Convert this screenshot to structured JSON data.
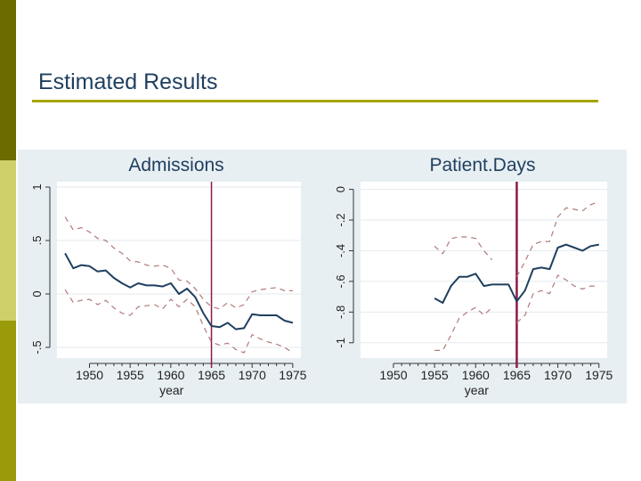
{
  "slide": {
    "title": "Estimated Results"
  },
  "colors": {
    "line": "#1f3f5f",
    "ci": "#b07a7a",
    "vline": "#8b1a4a",
    "panel_bg": "#e8eff3"
  },
  "chart_data": [
    {
      "type": "line",
      "title": "Admissions",
      "xlabel": "year",
      "ylabel": "",
      "xlim": [
        1946,
        1976
      ],
      "ylim": [
        -0.6,
        1.05
      ],
      "xticks": [
        1950,
        1955,
        1960,
        1965,
        1970,
        1975
      ],
      "yticks": [
        -0.5,
        0,
        0.5,
        1
      ],
      "ytick_labels": [
        "-.5",
        "0",
        ".5",
        "1"
      ],
      "vline": 1965,
      "x": [
        1947,
        1948,
        1949,
        1950,
        1951,
        1952,
        1953,
        1954,
        1955,
        1956,
        1957,
        1958,
        1959,
        1960,
        1961,
        1962,
        1963,
        1964,
        1965,
        1966,
        1967,
        1968,
        1969,
        1970,
        1971,
        1972,
        1973,
        1974,
        1975
      ],
      "series": [
        {
          "name": "estimate",
          "style": "solid",
          "values": [
            0.38,
            0.24,
            0.27,
            0.26,
            0.21,
            0.22,
            0.15,
            0.1,
            0.06,
            0.1,
            0.08,
            0.08,
            0.07,
            0.1,
            0.0,
            0.05,
            -0.03,
            -0.18,
            -0.3,
            -0.31,
            -0.27,
            -0.33,
            -0.32,
            -0.19,
            -0.2,
            -0.2,
            -0.2,
            -0.25,
            -0.27
          ]
        },
        {
          "name": "upper CI",
          "style": "dashed",
          "values": [
            0.72,
            0.6,
            0.62,
            0.58,
            0.52,
            0.5,
            0.43,
            0.38,
            0.31,
            0.3,
            0.27,
            0.26,
            0.27,
            0.24,
            0.13,
            0.12,
            0.05,
            -0.05,
            -0.12,
            -0.14,
            -0.08,
            -0.13,
            -0.1,
            0.02,
            0.04,
            0.05,
            0.06,
            0.03,
            0.03
          ]
        },
        {
          "name": "lower CI",
          "style": "dashed",
          "values": [
            0.04,
            -0.08,
            -0.06,
            -0.05,
            -0.1,
            -0.06,
            -0.13,
            -0.18,
            -0.2,
            -0.12,
            -0.11,
            -0.1,
            -0.14,
            -0.05,
            -0.12,
            -0.05,
            -0.12,
            -0.3,
            -0.45,
            -0.48,
            -0.46,
            -0.52,
            -0.55,
            -0.38,
            -0.42,
            -0.45,
            -0.47,
            -0.5,
            -0.55
          ]
        }
      ]
    },
    {
      "type": "line",
      "title": "Patient.Days",
      "xlabel": "year",
      "ylabel": "",
      "xlim": [
        1946,
        1976
      ],
      "ylim": [
        -1.1,
        0.05
      ],
      "xticks": [
        1950,
        1955,
        1960,
        1965,
        1970,
        1975
      ],
      "yticks": [
        -1,
        -0.8,
        -0.6,
        -0.4,
        -0.2,
        0
      ],
      "ytick_labels": [
        "-1",
        "-.8",
        "-.6",
        "-.4",
        "-.2",
        "0"
      ],
      "vline": 1965,
      "x": [
        1955,
        1956,
        1957,
        1958,
        1959,
        1960,
        1961,
        1962,
        1963,
        1964,
        1965,
        1966,
        1967,
        1968,
        1969,
        1970,
        1971,
        1972,
        1973,
        1974,
        1975
      ],
      "series": [
        {
          "name": "estimate",
          "style": "solid",
          "values": [
            -0.71,
            -0.74,
            -0.63,
            -0.57,
            -0.57,
            -0.55,
            -0.63,
            -0.62,
            -0.62,
            -0.62,
            -0.73,
            -0.66,
            -0.52,
            -0.51,
            -0.52,
            -0.38,
            -0.36,
            -0.38,
            -0.4,
            -0.37,
            -0.36
          ]
        },
        {
          "name": "upper CI",
          "style": "dashed",
          "values": [
            -0.37,
            -0.42,
            -0.32,
            -0.31,
            -0.31,
            -0.32,
            -0.4,
            -0.46,
            null,
            null,
            -0.57,
            -0.47,
            -0.36,
            -0.34,
            -0.34,
            -0.18,
            -0.12,
            -0.13,
            -0.14,
            -0.1,
            -0.08
          ]
        },
        {
          "name": "lower CI",
          "style": "dashed",
          "values": [
            -1.05,
            -1.05,
            -0.95,
            -0.84,
            -0.8,
            -0.77,
            -0.82,
            -0.77,
            null,
            null,
            -0.87,
            -0.82,
            -0.68,
            -0.66,
            -0.68,
            -0.56,
            -0.59,
            -0.63,
            -0.65,
            -0.63,
            -0.63
          ]
        }
      ]
    }
  ]
}
